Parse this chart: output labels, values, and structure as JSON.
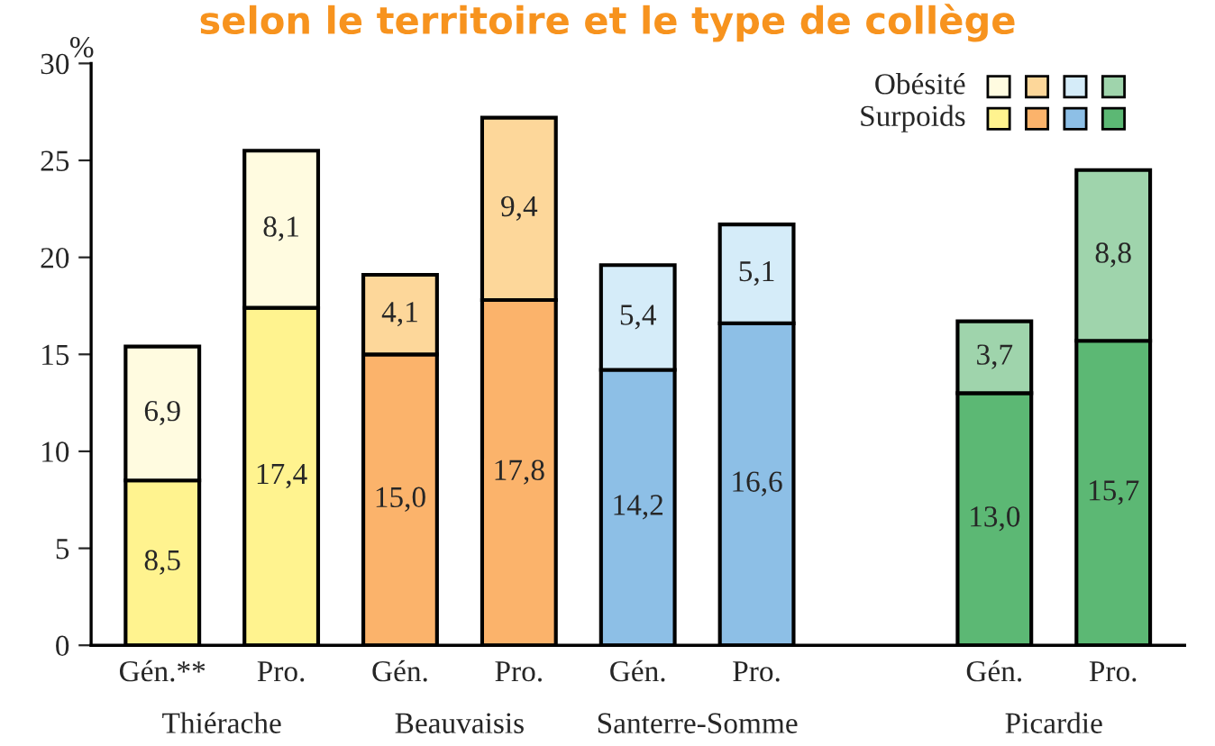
{
  "chart_data": {
    "type": "bar",
    "title": "selon le territoire et le type de collège",
    "ylabel": "%",
    "categories": [
      "Gén.**",
      "Pro.",
      "Gén.",
      "Pro.",
      "Gén.",
      "Pro.",
      null,
      "Gén.",
      "Pro."
    ],
    "stacked": true,
    "series": [
      {
        "name": "Surpoids",
        "colors": [
          "#fff38f",
          "#fff38f",
          "#fbb36b",
          "#fbb36b",
          "#8dbfe6",
          "#8dbfe6",
          null,
          "#5cb874",
          "#5cb874"
        ],
        "values": [
          8.5,
          17.4,
          15.0,
          17.8,
          14.2,
          16.6,
          null,
          13.0,
          15.7
        ],
        "value_labels": [
          "8,5",
          "17,4",
          "15,0",
          "17,8",
          "14,2",
          "16,6",
          null,
          "13,0",
          "15,7"
        ]
      },
      {
        "name": "Obésité",
        "colors": [
          "#fffbe0",
          "#fffbe0",
          "#fdd79a",
          "#fdd79a",
          "#d5ecf9",
          "#d5ecf9",
          null,
          "#9fd4ac",
          "#9fd4ac"
        ],
        "values": [
          6.9,
          8.1,
          4.1,
          9.4,
          5.4,
          5.1,
          null,
          3.7,
          8.8
        ],
        "value_labels": [
          "6,9",
          "8,1",
          "4,1",
          "9,4",
          "5,4",
          "5,1",
          null,
          "3,7",
          "8,8"
        ]
      }
    ],
    "annotations": [
      "Thiérache",
      "Beauvaisis",
      "Santerre-Somme",
      "Picardie"
    ],
    "ylim": [
      0,
      30
    ],
    "yticks": [
      0,
      5,
      10,
      15,
      20,
      25,
      30
    ],
    "grid": false,
    "legend": "top right"
  }
}
